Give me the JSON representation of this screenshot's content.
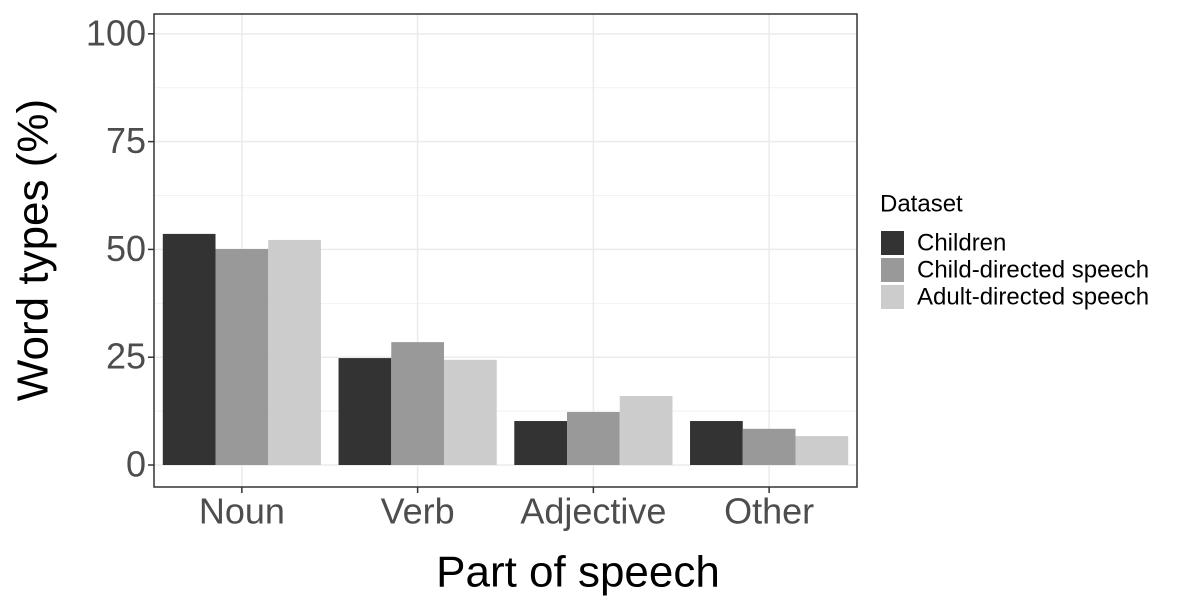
{
  "chart_data": {
    "type": "bar",
    "x_label": "Part of speech",
    "y_label": "Word types (%)",
    "categories": [
      "Noun",
      "Verb",
      "Adjective",
      "Other"
    ],
    "legend_title": "Dataset",
    "legend": "right",
    "series": [
      {
        "name": "Children",
        "color": "#333333",
        "values": [
          53.6,
          24.8,
          10.2,
          10.2
        ]
      },
      {
        "name": "Child-directed speech",
        "color": "#999999",
        "values": [
          50.1,
          28.5,
          12.3,
          8.4
        ]
      },
      {
        "name": "Adult-directed speech",
        "color": "#cccccc",
        "values": [
          52.2,
          24.4,
          16.0,
          6.7
        ]
      }
    ],
    "ylim": [
      -5.1,
      104.6
    ],
    "yticks": [
      0,
      25,
      50,
      75,
      100
    ],
    "grid": true
  }
}
